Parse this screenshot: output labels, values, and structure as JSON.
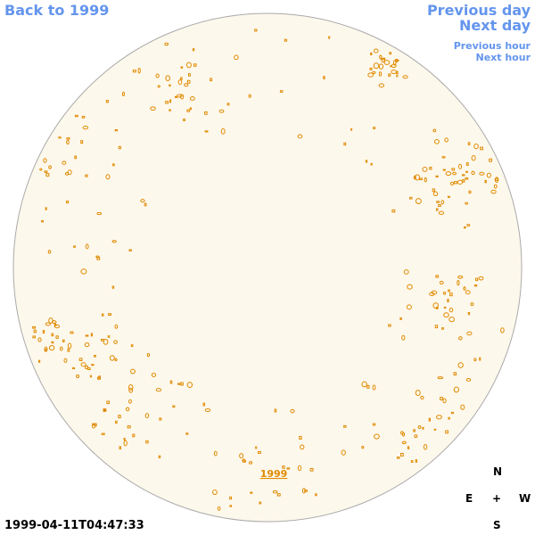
{
  "nav": {
    "back": "Back to 1999",
    "previous_day": "Previous day",
    "next_day": "Next day",
    "previous_hour": "Previous hour",
    "next_hour": "Next hour"
  },
  "disk": {
    "year_link": "1999"
  },
  "compass": {
    "north": "N",
    "east": "E",
    "center": "+",
    "west": "W",
    "south": "S"
  },
  "timestamp": "1999-04-11T04:47:33"
}
